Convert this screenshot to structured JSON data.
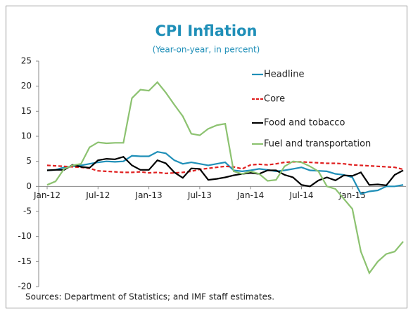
{
  "chart_data": {
    "type": "line",
    "title": "CPI Inflation",
    "subtitle": "(Year-on-year, in percent)",
    "source": "Sources: Department of Statistics; and IMF staff estimates.",
    "categories": [
      "Jan-12",
      null,
      null,
      null,
      null,
      null,
      "Jul-12",
      null,
      null,
      null,
      null,
      null,
      "Jan-13",
      null,
      null,
      null,
      null,
      null,
      "Jul-13",
      null,
      null,
      null,
      null,
      null,
      "Jan-14",
      null,
      null,
      null,
      null,
      null,
      "Jul-14",
      null,
      null,
      null,
      null,
      null,
      "Jan-15",
      null,
      null,
      null,
      null,
      null,
      null
    ],
    "ylim": [
      -20,
      25
    ],
    "yticks": [
      -20,
      -15,
      -10,
      -5,
      0,
      5,
      10,
      15,
      20,
      25
    ],
    "series": [
      {
        "name": "Headline",
        "color": "#1f8fb8",
        "style": "solid",
        "values": [
          3.2,
          3.3,
          3.8,
          4,
          4.2,
          4.5,
          4.8,
          5,
          4.9,
          5,
          6.1,
          6,
          6,
          6.9,
          6.6,
          5.2,
          4.5,
          4.8,
          4.5,
          4.2,
          4.5,
          4.8,
          3.2,
          3,
          3.2,
          3.5,
          3.3,
          3,
          3.2,
          3.5,
          3.8,
          3.2,
          3.1,
          3,
          2.5,
          2.3,
          1.8,
          -1.5,
          -1,
          -0.8,
          0,
          0,
          0.3
        ]
      },
      {
        "name": "Core",
        "color": "#e02020",
        "style": "dashed",
        "values": [
          4.2,
          4.1,
          4,
          3.9,
          3.8,
          3.6,
          3.1,
          3,
          2.9,
          2.8,
          2.8,
          2.9,
          2.7,
          2.8,
          2.6,
          2.7,
          2.8,
          3,
          3.4,
          3.6,
          3.8,
          4,
          3.9,
          3.5,
          4.3,
          4.4,
          4.3,
          4.5,
          4.8,
          4.9,
          4.9,
          4.8,
          4.7,
          4.6,
          4.6,
          4.5,
          4.3,
          4.2,
          4.1,
          4,
          3.9,
          3.8,
          3.4
        ]
      },
      {
        "name": "Food and tobacco",
        "color": "#000000",
        "style": "solid",
        "values": [
          3.2,
          3.3,
          3.3,
          4.3,
          3.9,
          3.7,
          5.2,
          5.5,
          5.4,
          5.9,
          4.2,
          3.3,
          3.3,
          5.2,
          4.6,
          2.8,
          1.7,
          3.6,
          3.5,
          1.3,
          1.5,
          1.8,
          2.2,
          2.5,
          2.7,
          2.5,
          3.2,
          3.2,
          2.3,
          1.8,
          0.3,
          0,
          1.2,
          1.8,
          1.2,
          2.2,
          2.1,
          2.8,
          0.3,
          0.4,
          0.2,
          2.3,
          3.2
        ]
      },
      {
        "name": "Fuel and transportation",
        "color": "#8cc270",
        "style": "solid",
        "values": [
          0.3,
          1,
          3.5,
          4.2,
          4.5,
          7.8,
          8.8,
          8.6,
          8.7,
          8.7,
          17.6,
          19.3,
          19.1,
          20.8,
          18.7,
          16.3,
          14,
          10.5,
          10.2,
          11.5,
          12.2,
          12.5,
          3,
          2.5,
          3,
          2.5,
          1.1,
          1.3,
          4,
          5,
          4.8,
          4,
          3,
          0,
          -0.5,
          -2.5,
          -4.5,
          -13,
          -17.3,
          -15,
          -13.5,
          -13,
          -11
        ]
      }
    ]
  }
}
